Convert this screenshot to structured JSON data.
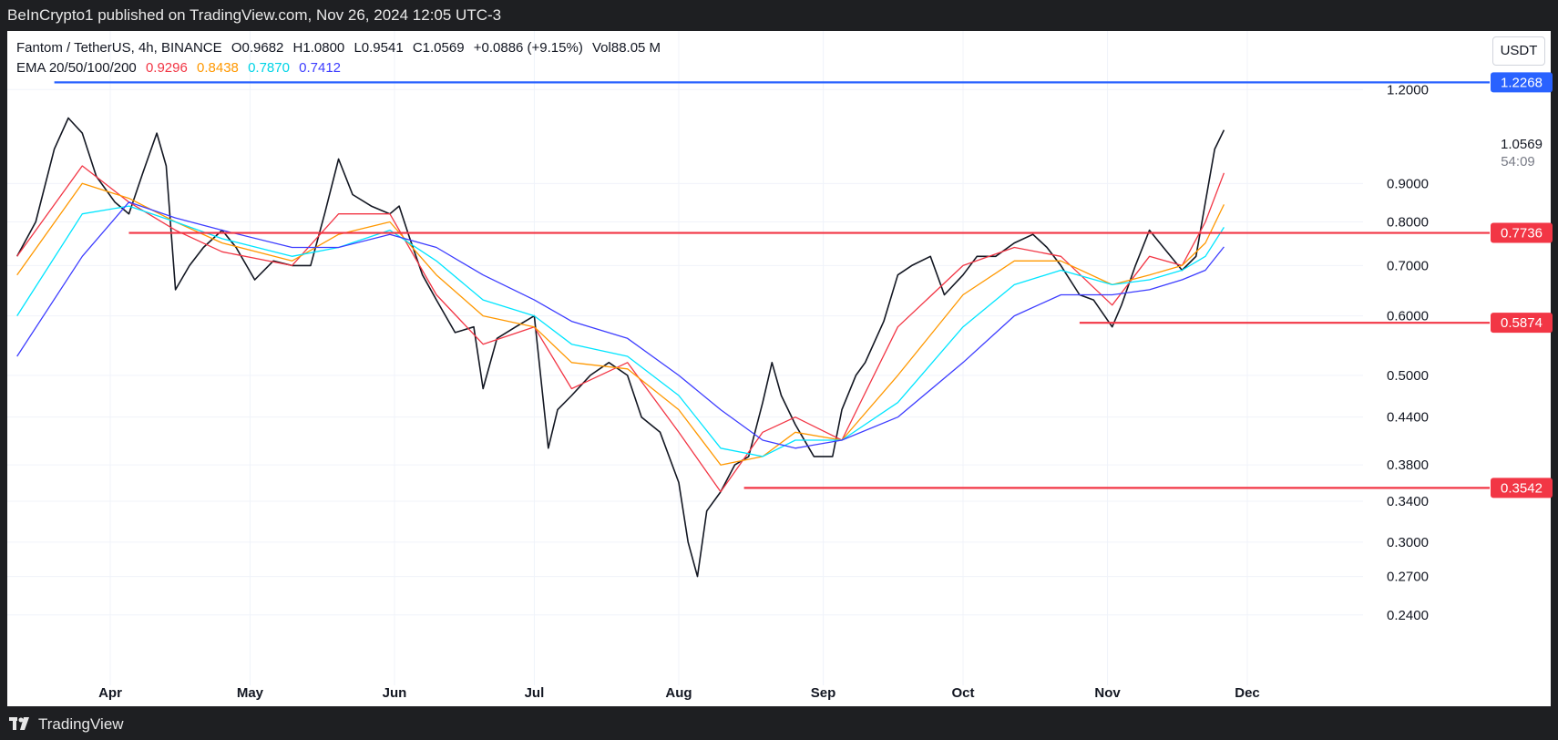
{
  "header": {
    "published": "BeInCrypto1 published on TradingView.com, Nov 26, 2024 12:05 UTC-3"
  },
  "footer": {
    "brand": "TradingView"
  },
  "legend": {
    "line1": {
      "symbol": "Fantom / TetherUS, 4h, BINANCE",
      "open": "O0.9682",
      "high": "H1.0800",
      "low": "L0.9541",
      "close": "C1.0569",
      "change": "+0.0886 (+9.15%)",
      "vol": "Vol88.05 M"
    },
    "line2": {
      "label": "EMA 20/50/100/200",
      "ema20": "0.9296",
      "ema50": "0.8438",
      "ema100": "0.7870",
      "ema200": "0.7412"
    }
  },
  "currency_button": "USDT",
  "colors": {
    "ema20": "#f23645",
    "ema50": "#ff9800",
    "ema100": "#00e5ff",
    "ema200": "#3d3dff",
    "resistance": "#2962ff",
    "support": "#f23645"
  },
  "chart_data": {
    "type": "line",
    "title": "Fantom / TetherUS, 4h, BINANCE",
    "ylim": [
      0.23,
      1.27
    ],
    "y_scale": "log",
    "x_tick_labels": [
      "Apr",
      "May",
      "Jun",
      "Jul",
      "Aug",
      "Sep",
      "Oct",
      "Nov",
      "Dec"
    ],
    "y_tick_labels": [
      "1.2000",
      "0.9000",
      "0.8000",
      "0.7000",
      "0.6000",
      "0.5000",
      "0.4400",
      "0.3800",
      "0.3400",
      "0.3000",
      "0.2700",
      "0.2400"
    ],
    "price_labels": [
      "1.0569",
      "54:09"
    ],
    "horizontal_levels": [
      {
        "value": 1.2268,
        "label": "1.2268",
        "color": "#2962ff",
        "x_from": "Mar 20"
      },
      {
        "value": 0.7736,
        "label": "0.7736",
        "color": "#f23645",
        "x_from": "Apr 5"
      },
      {
        "value": 0.5874,
        "label": "0.5874",
        "color": "#f23645",
        "x_from": "Oct 26"
      },
      {
        "value": 0.3542,
        "label": "0.3542",
        "color": "#f23645",
        "x_from": "Aug 15"
      }
    ],
    "series": [
      {
        "name": "Price",
        "x": [
          "Mar 12",
          "Mar 16",
          "Mar 20",
          "Mar 23",
          "Mar 26",
          "Mar 29",
          "Apr 2",
          "Apr 5",
          "Apr 8",
          "Apr 11",
          "Apr 13",
          "Apr 15",
          "Apr 18",
          "Apr 21",
          "Apr 25",
          "Apr 28",
          "May 2",
          "May 6",
          "May 10",
          "May 14",
          "May 17",
          "May 20",
          "May 23",
          "May 27",
          "May 31",
          "Jun 2",
          "Jun 4",
          "Jun 7",
          "Jun 10",
          "Jun 14",
          "Jun 18",
          "Jun 20",
          "Jun 23",
          "Jun 27",
          "Jul 1",
          "Jul 4",
          "Jul 6",
          "Jul 9",
          "Jul 13",
          "Jul 17",
          "Jul 21",
          "Jul 24",
          "Jul 28",
          "Aug 1",
          "Aug 3",
          "Aug 5",
          "Aug 7",
          "Aug 10",
          "Aug 13",
          "Aug 16",
          "Aug 19",
          "Aug 21",
          "Aug 23",
          "Aug 26",
          "Aug 30",
          "Sep 3",
          "Sep 5",
          "Sep 8",
          "Sep 10",
          "Sep 14",
          "Sep 17",
          "Sep 20",
          "Sep 24",
          "Sep 27",
          "Oct 1",
          "Oct 4",
          "Oct 8",
          "Oct 12",
          "Oct 16",
          "Oct 19",
          "Oct 22",
          "Oct 26",
          "Oct 29",
          "Nov 2",
          "Nov 4",
          "Nov 7",
          "Nov 10",
          "Nov 13",
          "Nov 17",
          "Nov 20",
          "Nov 22",
          "Nov 24",
          "Nov 26"
        ],
        "values": [
          0.72,
          0.8,
          1.0,
          1.1,
          1.05,
          0.92,
          0.85,
          0.82,
          0.93,
          1.05,
          0.95,
          0.65,
          0.7,
          0.74,
          0.78,
          0.74,
          0.67,
          0.71,
          0.7,
          0.7,
          0.82,
          0.97,
          0.87,
          0.84,
          0.82,
          0.84,
          0.77,
          0.68,
          0.63,
          0.57,
          0.58,
          0.48,
          0.56,
          0.58,
          0.6,
          0.4,
          0.45,
          0.47,
          0.5,
          0.52,
          0.5,
          0.44,
          0.42,
          0.36,
          0.3,
          0.27,
          0.33,
          0.35,
          0.38,
          0.39,
          0.46,
          0.52,
          0.47,
          0.43,
          0.39,
          0.39,
          0.45,
          0.5,
          0.52,
          0.59,
          0.68,
          0.7,
          0.72,
          0.64,
          0.68,
          0.72,
          0.72,
          0.75,
          0.77,
          0.74,
          0.7,
          0.64,
          0.63,
          0.58,
          0.62,
          0.7,
          0.78,
          0.74,
          0.69,
          0.72,
          0.85,
          1.0,
          1.06
        ]
      },
      {
        "name": "EMA 20",
        "x": [
          "Mar 12",
          "Mar 26",
          "Apr 5",
          "Apr 15",
          "Apr 25",
          "May 10",
          "May 20",
          "May 31",
          "Jun 10",
          "Jun 20",
          "Jul 1",
          "Jul 9",
          "Jul 21",
          "Aug 1",
          "Aug 10",
          "Aug 19",
          "Aug 26",
          "Sep 5",
          "Sep 17",
          "Oct 1",
          "Oct 12",
          "Oct 22",
          "Nov 2",
          "Nov 10",
          "Nov 17",
          "Nov 22",
          "Nov 26"
        ],
        "values": [
          0.72,
          0.95,
          0.85,
          0.78,
          0.73,
          0.7,
          0.82,
          0.82,
          0.64,
          0.55,
          0.58,
          0.48,
          0.52,
          0.42,
          0.35,
          0.42,
          0.44,
          0.41,
          0.58,
          0.7,
          0.74,
          0.72,
          0.62,
          0.72,
          0.7,
          0.8,
          0.9296
        ]
      },
      {
        "name": "EMA 50",
        "x": [
          "Mar 12",
          "Mar 26",
          "Apr 5",
          "Apr 15",
          "Apr 25",
          "May 10",
          "May 20",
          "May 31",
          "Jun 10",
          "Jun 20",
          "Jul 1",
          "Jul 9",
          "Jul 21",
          "Aug 1",
          "Aug 10",
          "Aug 19",
          "Aug 26",
          "Sep 5",
          "Sep 17",
          "Oct 1",
          "Oct 12",
          "Oct 22",
          "Nov 2",
          "Nov 10",
          "Nov 17",
          "Nov 22",
          "Nov 26"
        ],
        "values": [
          0.68,
          0.9,
          0.86,
          0.8,
          0.75,
          0.71,
          0.77,
          0.8,
          0.68,
          0.6,
          0.58,
          0.52,
          0.51,
          0.45,
          0.38,
          0.39,
          0.42,
          0.41,
          0.5,
          0.64,
          0.71,
          0.71,
          0.66,
          0.68,
          0.7,
          0.75,
          0.8438
        ]
      },
      {
        "name": "EMA 100",
        "x": [
          "Mar 12",
          "Mar 26",
          "Apr 5",
          "Apr 15",
          "Apr 25",
          "May 10",
          "May 20",
          "May 31",
          "Jun 10",
          "Jun 20",
          "Jul 1",
          "Jul 9",
          "Jul 21",
          "Aug 1",
          "Aug 10",
          "Aug 19",
          "Aug 26",
          "Sep 5",
          "Sep 17",
          "Oct 1",
          "Oct 12",
          "Oct 22",
          "Nov 2",
          "Nov 10",
          "Nov 17",
          "Nov 22",
          "Nov 26"
        ],
        "values": [
          0.6,
          0.82,
          0.84,
          0.8,
          0.76,
          0.72,
          0.74,
          0.78,
          0.71,
          0.63,
          0.6,
          0.55,
          0.53,
          0.47,
          0.4,
          0.39,
          0.41,
          0.41,
          0.46,
          0.58,
          0.66,
          0.69,
          0.66,
          0.67,
          0.69,
          0.72,
          0.787
        ]
      },
      {
        "name": "EMA 200",
        "x": [
          "Mar 12",
          "Mar 26",
          "Apr 5",
          "Apr 15",
          "Apr 25",
          "May 10",
          "May 20",
          "May 31",
          "Jun 10",
          "Jun 20",
          "Jul 1",
          "Jul 9",
          "Jul 21",
          "Aug 1",
          "Aug 10",
          "Aug 19",
          "Aug 26",
          "Sep 5",
          "Sep 17",
          "Oct 1",
          "Oct 12",
          "Oct 22",
          "Nov 2",
          "Nov 10",
          "Nov 17",
          "Nov 22",
          "Nov 26"
        ],
        "values": [
          0.53,
          0.72,
          0.85,
          0.81,
          0.78,
          0.74,
          0.74,
          0.77,
          0.74,
          0.68,
          0.63,
          0.59,
          0.56,
          0.5,
          0.45,
          0.41,
          0.4,
          0.41,
          0.44,
          0.52,
          0.6,
          0.64,
          0.64,
          0.65,
          0.67,
          0.69,
          0.7412
        ]
      }
    ]
  }
}
